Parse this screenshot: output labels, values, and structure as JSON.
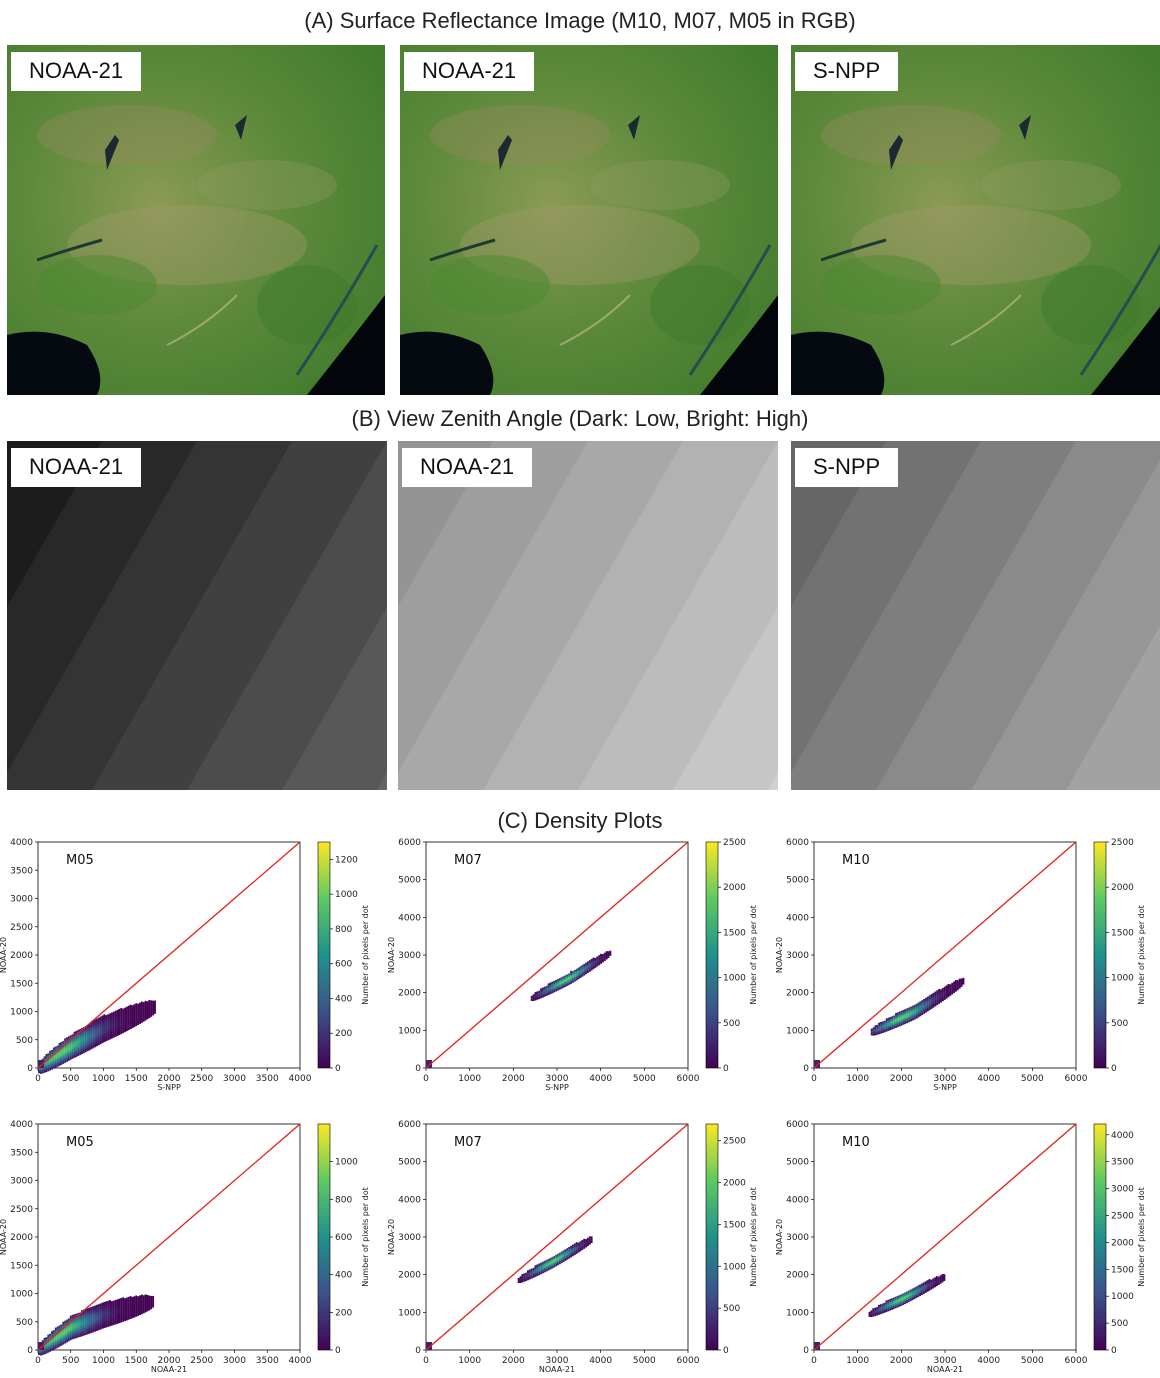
{
  "sections": {
    "a_title": "(A) Surface Reflectance Image (M10, M07, M05 in RGB)",
    "b_title": "(B) View Zenith Angle (Dark: Low, Bright: High)",
    "c_title": "(C) Density Plots"
  },
  "images_a": [
    {
      "label": "NOAA-21"
    },
    {
      "label": "NOAA-21"
    },
    {
      "label": "S-NPP"
    }
  ],
  "images_b": [
    {
      "label": "NOAA-21",
      "base_color": "#101010",
      "band_step": 12
    },
    {
      "label": "NOAA-21",
      "base_color": "#8a8a8a",
      "band_step": 10
    },
    {
      "label": "S-NPP",
      "base_color": "#5a5a5a",
      "band_step": 12
    }
  ],
  "colors": {
    "red_line": "#e0201b",
    "colormap": [
      "#440154",
      "#3b528b",
      "#21918c",
      "#5ec962",
      "#fde725"
    ]
  },
  "chart_data": [
    {
      "type": "scatter",
      "band": "M05",
      "xlabel": "S-NPP",
      "ylabel": "NOAA-20",
      "xlim": [
        0,
        4000
      ],
      "ylim": [
        0,
        4000
      ],
      "xticks": [
        0,
        500,
        1000,
        1500,
        2000,
        2500,
        3000,
        3500,
        4000
      ],
      "yticks": [
        0,
        500,
        1000,
        1500,
        2000,
        2500,
        3000,
        3500,
        4000
      ],
      "colorbar_label": "Number of pixels per dot",
      "colorbar_max": 1300,
      "colorbar_ticks": [
        0,
        200,
        400,
        600,
        800,
        1000,
        1200
      ],
      "cloud": {
        "x_range": [
          0,
          1800
        ],
        "y_center_at_x": [
          [
            0,
            0
          ],
          [
            500,
            380
          ],
          [
            1000,
            700
          ],
          [
            1500,
            950
          ]
        ],
        "spread": 230,
        "peak": [
          350,
          280
        ]
      },
      "identity_line": true
    },
    {
      "type": "scatter",
      "band": "M07",
      "xlabel": "S-NPP",
      "ylabel": "NOAA-20",
      "xlim": [
        0,
        6000
      ],
      "ylim": [
        0,
        6000
      ],
      "xticks": [
        0,
        1000,
        2000,
        3000,
        4000,
        5000,
        6000
      ],
      "yticks": [
        0,
        1000,
        2000,
        3000,
        4000,
        5000,
        6000
      ],
      "colorbar_label": "Number of pixels per dot",
      "colorbar_max": 2500,
      "colorbar_ticks": [
        0,
        500,
        1000,
        1500,
        2000,
        2500
      ],
      "cloud": {
        "x_range": [
          2400,
          4200
        ],
        "y_center_at_x": [
          [
            2400,
            1850
          ],
          [
            3300,
            2400
          ],
          [
            4200,
            3050
          ]
        ],
        "spread": 150,
        "peak": [
          3200,
          2400
        ]
      },
      "identity_line": true
    },
    {
      "type": "scatter",
      "band": "M10",
      "xlabel": "S-NPP",
      "ylabel": "NOAA-20",
      "xlim": [
        0,
        6000
      ],
      "ylim": [
        0,
        6000
      ],
      "xticks": [
        0,
        1000,
        2000,
        3000,
        4000,
        5000,
        6000
      ],
      "yticks": [
        0,
        1000,
        2000,
        3000,
        4000,
        5000,
        6000
      ],
      "colorbar_label": "Number of pixels per dot",
      "colorbar_max": 2500,
      "colorbar_ticks": [
        0,
        500,
        1000,
        1500,
        2000,
        2500
      ],
      "cloud": {
        "x_range": [
          1300,
          3400
        ],
        "y_center_at_x": [
          [
            1300,
            950
          ],
          [
            2300,
            1500
          ],
          [
            3400,
            2300
          ]
        ],
        "spread": 190,
        "peak": [
          2000,
          1400
        ]
      },
      "identity_line": true
    },
    {
      "type": "scatter",
      "band": "M05",
      "xlabel": "NOAA-21",
      "ylabel": "NOAA-20",
      "xlim": [
        0,
        4000
      ],
      "ylim": [
        0,
        4000
      ],
      "xticks": [
        0,
        500,
        1000,
        1500,
        2000,
        2500,
        3000,
        3500,
        4000
      ],
      "yticks": [
        0,
        500,
        1000,
        1500,
        2000,
        2500,
        3000,
        3500,
        4000
      ],
      "colorbar_label": "Number of pixels per dot",
      "colorbar_max": 1200,
      "colorbar_ticks": [
        0,
        200,
        400,
        600,
        800,
        1000
      ],
      "cloud": {
        "x_range": [
          0,
          1750
        ],
        "y_center_at_x": [
          [
            0,
            0
          ],
          [
            500,
            400
          ],
          [
            1000,
            620
          ],
          [
            1500,
            780
          ]
        ],
        "spread": 220,
        "peak": [
          350,
          300
        ]
      },
      "identity_line": true
    },
    {
      "type": "scatter",
      "band": "M07",
      "xlabel": "NOAA-21",
      "ylabel": "NOAA-20",
      "xlim": [
        0,
        6000
      ],
      "ylim": [
        0,
        6000
      ],
      "xticks": [
        0,
        1000,
        2000,
        3000,
        4000,
        5000,
        6000
      ],
      "yticks": [
        0,
        1000,
        2000,
        3000,
        4000,
        5000,
        6000
      ],
      "colorbar_label": "Number of pixels per dot",
      "colorbar_max": 2700,
      "colorbar_ticks": [
        0,
        500,
        1000,
        1500,
        2000,
        2500
      ],
      "cloud": {
        "x_range": [
          2100,
          3800
        ],
        "y_center_at_x": [
          [
            2100,
            1850
          ],
          [
            2900,
            2350
          ],
          [
            3800,
            2950
          ]
        ],
        "spread": 150,
        "peak": [
          2900,
          2350
        ]
      },
      "identity_line": true
    },
    {
      "type": "scatter",
      "band": "M10",
      "xlabel": "NOAA-21",
      "ylabel": "NOAA-20",
      "xlim": [
        0,
        6000
      ],
      "ylim": [
        0,
        6000
      ],
      "xticks": [
        0,
        1000,
        2000,
        3000,
        4000,
        5000,
        6000
      ],
      "yticks": [
        0,
        1000,
        2000,
        3000,
        4000,
        5000,
        6000
      ],
      "colorbar_label": "Number of pixels per dot",
      "colorbar_max": 4200,
      "colorbar_ticks": [
        0,
        500,
        1000,
        1500,
        2000,
        2500,
        3000,
        3500,
        4000
      ],
      "cloud": {
        "x_range": [
          1250,
          3000
        ],
        "y_center_at_x": [
          [
            1250,
            950
          ],
          [
            2000,
            1350
          ],
          [
            3000,
            1950
          ]
        ],
        "spread": 150,
        "peak": [
          2000,
          1350
        ]
      },
      "identity_line": true
    }
  ]
}
